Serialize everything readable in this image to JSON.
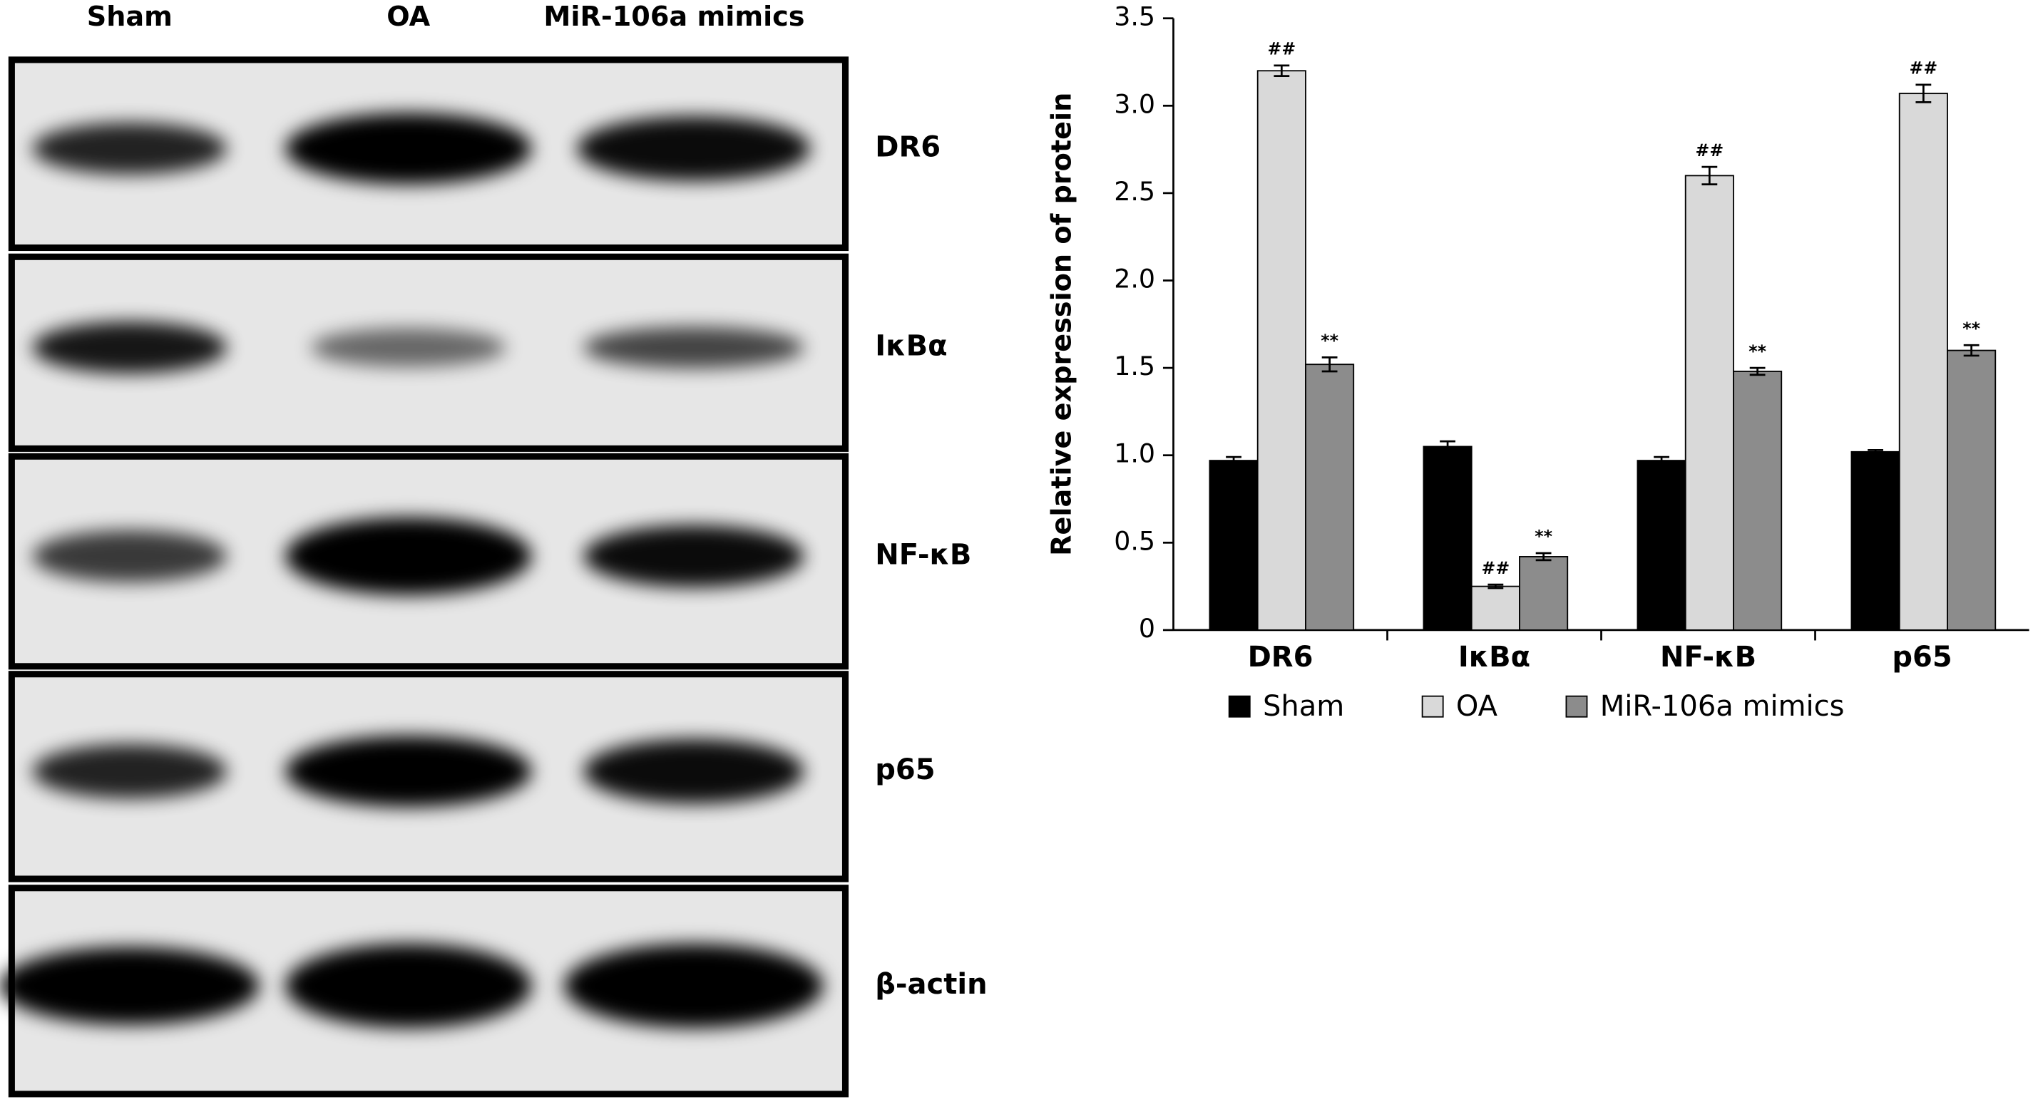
{
  "blot": {
    "lanes": [
      "Sham",
      "OA",
      "MiR-106a mimics"
    ],
    "rows": [
      "DR6",
      "IκBα",
      "NF-κB",
      "p65",
      "β-actin"
    ]
  },
  "chart_data": {
    "type": "bar",
    "y_label": "Relative expression of protein",
    "categories": [
      "DR6",
      "IκBα",
      "NF-κB",
      "p65"
    ],
    "series": [
      {
        "name": "Sham",
        "color": "#000000",
        "values": [
          0.97,
          1.05,
          0.97,
          1.02
        ],
        "errors": [
          0.02,
          0.03,
          0.02,
          0.01
        ]
      },
      {
        "name": "OA",
        "color": "#d9d9d9",
        "values": [
          3.2,
          0.25,
          2.6,
          3.07
        ],
        "errors": [
          0.03,
          0.01,
          0.05,
          0.05
        ],
        "labels": [
          "##",
          "##",
          "##",
          "##"
        ]
      },
      {
        "name": "MiR-106a mimics",
        "color": "#8c8c8c",
        "values": [
          1.52,
          0.42,
          1.48,
          1.6
        ],
        "errors": [
          0.04,
          0.02,
          0.02,
          0.03
        ],
        "labels": [
          "**",
          "**",
          "**",
          "**"
        ]
      }
    ],
    "ylim": [
      0,
      3.5
    ],
    "yticks": [
      0,
      0.5,
      {
        "value": 1,
        "label": "1.0"
      },
      1.5,
      {
        "value": 2,
        "label": "2.0"
      },
      2.5,
      {
        "value": 3,
        "label": "3.0"
      },
      3.5
    ],
    "legend": "bottom"
  }
}
